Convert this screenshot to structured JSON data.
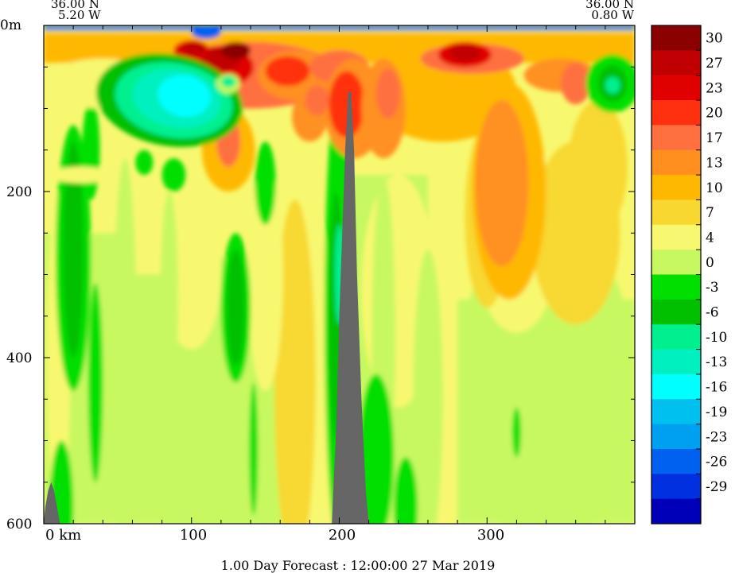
{
  "header": {
    "left_lat": "36.00 N",
    "left_lon": "5.20 W",
    "right_lat": "36.00 N",
    "right_lon": "0.80 W"
  },
  "footer": {
    "caption": "1.00 Day Forecast : 12:00:00  27 Mar 2019"
  },
  "chart_data": {
    "type": "heatmap",
    "title": "",
    "xlabel": "km",
    "ylabel": "m",
    "x_tick_labels": [
      "0 km",
      "100",
      "200",
      "300"
    ],
    "x_ticks": [
      0,
      100,
      200,
      300
    ],
    "xlim": [
      0,
      400
    ],
    "y_tick_labels": [
      "0m",
      "200",
      "400",
      "600"
    ],
    "y_ticks": [
      0,
      200,
      400,
      600
    ],
    "ylim": [
      600,
      0
    ],
    "colorbar": {
      "tick_labels": [
        "30",
        "27",
        "23",
        "20",
        "17",
        "13",
        "10",
        "7",
        "4",
        "0",
        "-3",
        "-6",
        "-10",
        "-13",
        "-16",
        "-19",
        "-23",
        "-26",
        "-29"
      ],
      "colors": [
        "#8b0000",
        "#c00000",
        "#e00000",
        "#ff3010",
        "#ff7040",
        "#ff9020",
        "#ffb800",
        "#f8d830",
        "#f8f870",
        "#c8f860",
        "#00e000",
        "#00c000",
        "#00f090",
        "#00f0c0",
        "#00ffff",
        "#00c0f0",
        "#00a0f0",
        "#0060f0",
        "#0030e0",
        "#0000b8"
      ]
    },
    "terrain_color": "#666666"
  }
}
